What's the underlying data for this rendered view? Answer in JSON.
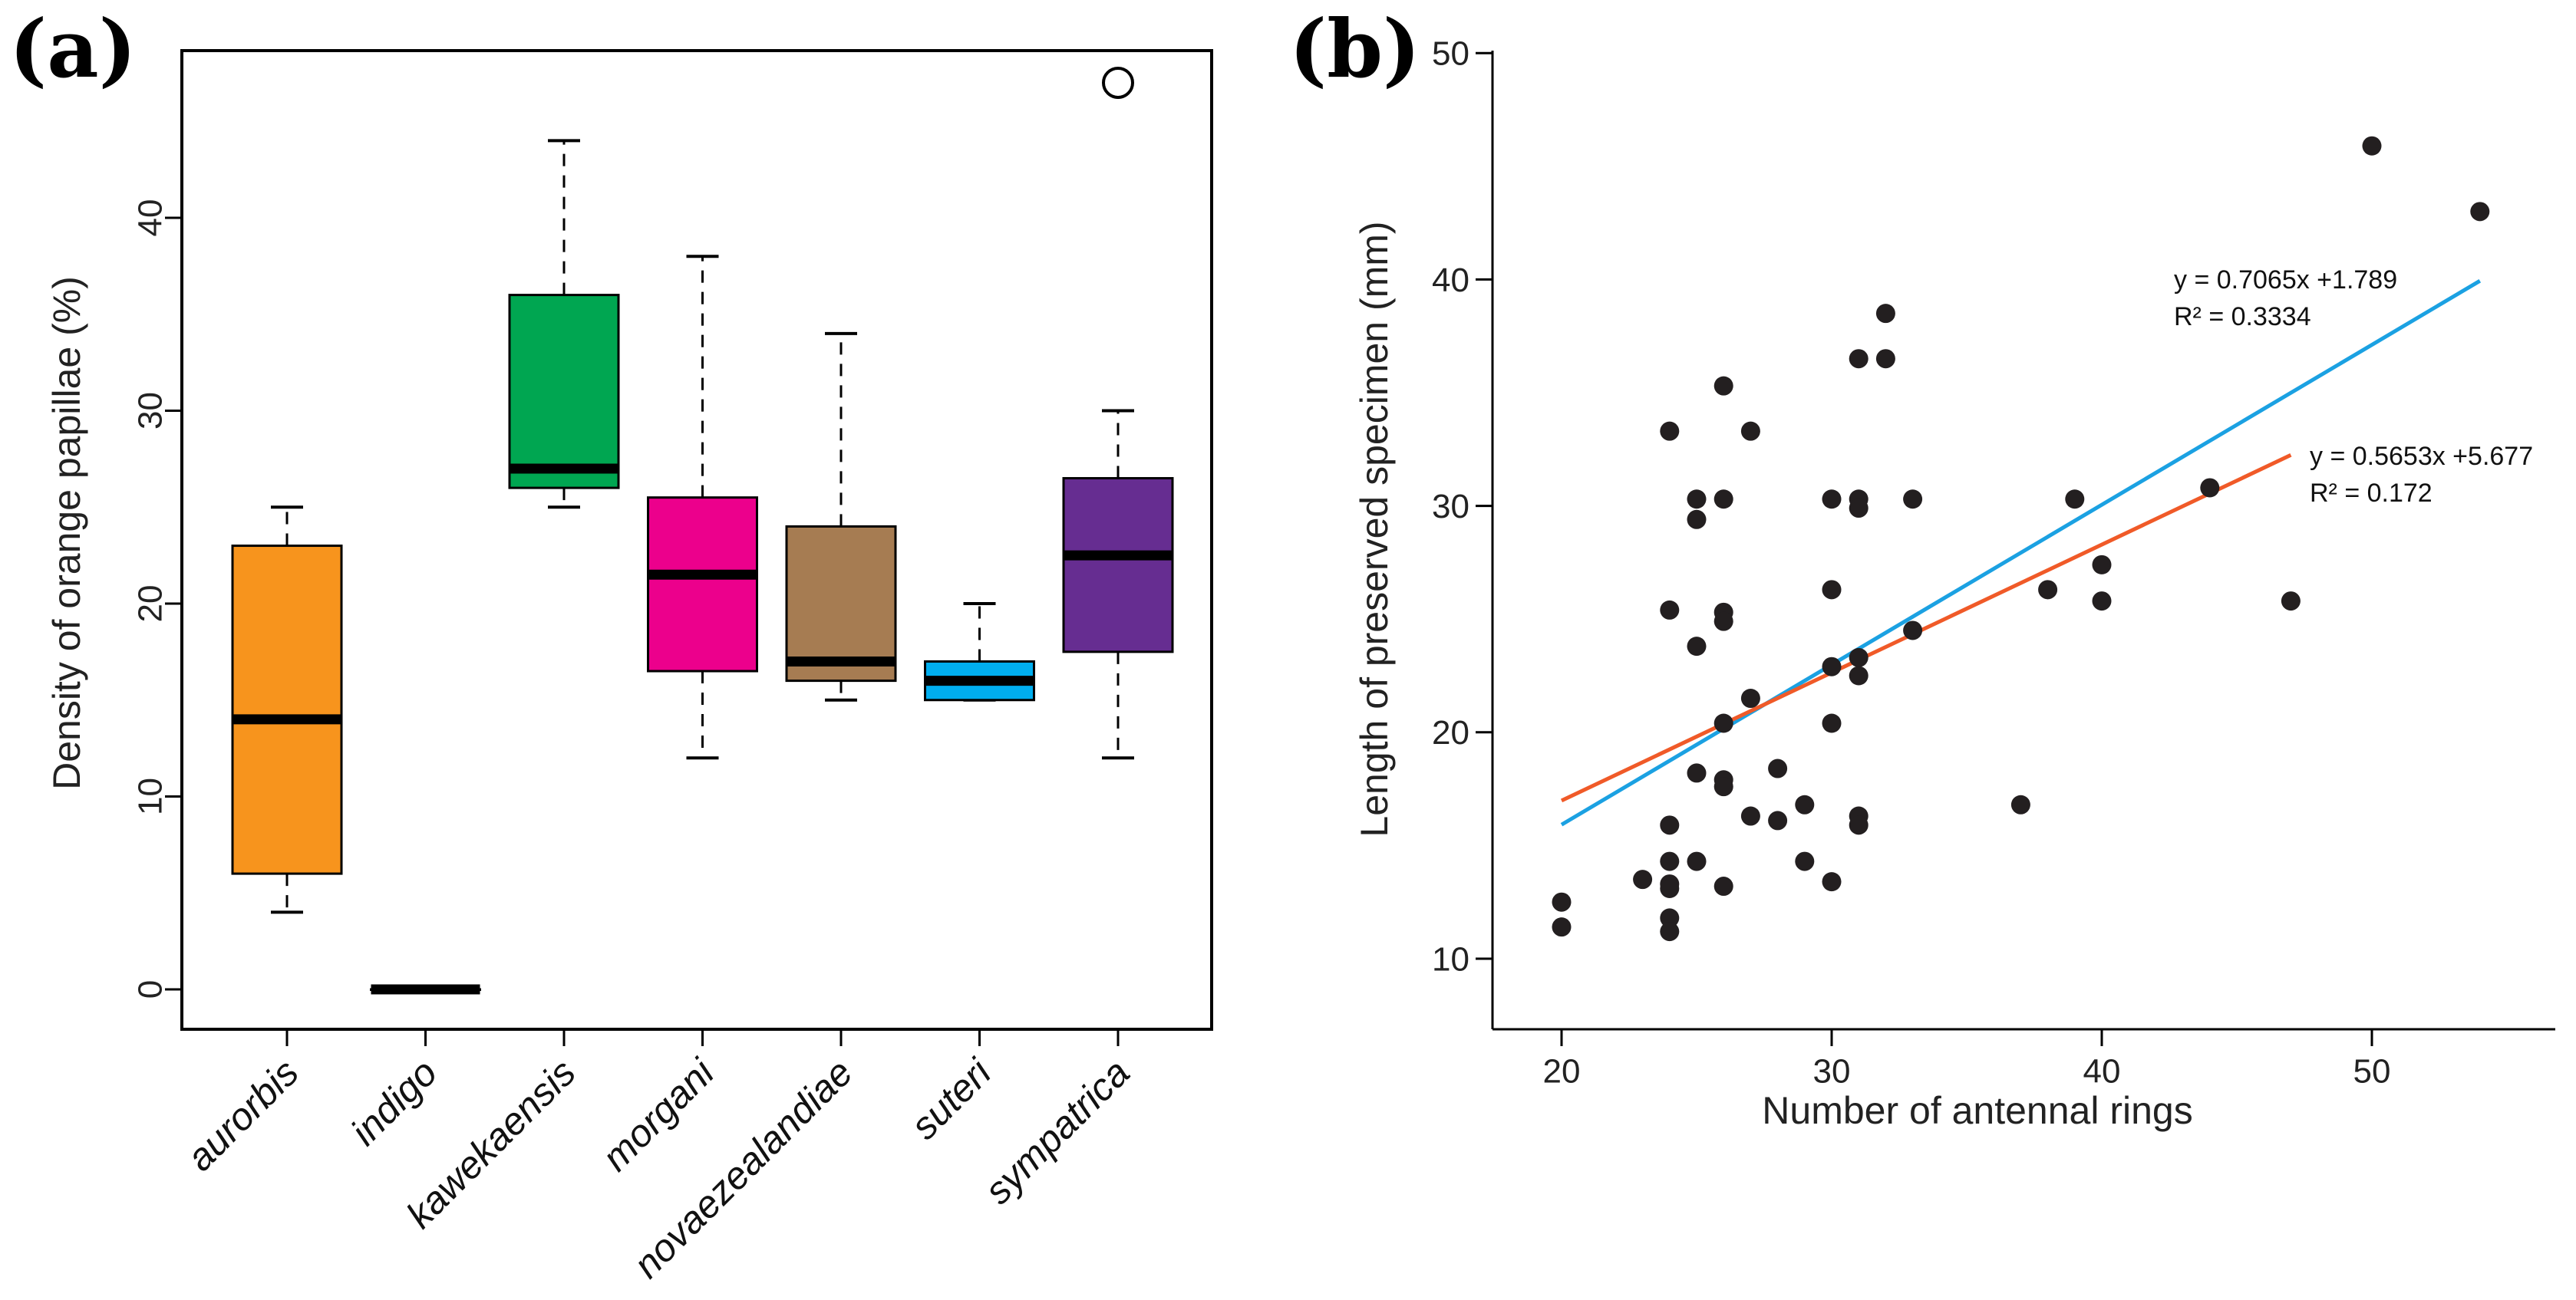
{
  "chart_data": [
    {
      "panel": "(a)",
      "type": "box",
      "title": "",
      "xlabel": "",
      "ylabel": "Density of orange papillae (%)",
      "ylim": [
        -2,
        50
      ],
      "yticks": [
        0,
        10,
        20,
        30,
        40
      ],
      "categories": [
        "aurorbis",
        "indigo",
        "kawekaensis",
        "morgani",
        "novaezealandiae",
        "suteri",
        "sympatrica"
      ],
      "boxes": [
        {
          "name": "aurorbis",
          "color": "#F7941D",
          "min": 4,
          "q1": 6,
          "median": 14,
          "q3": 23,
          "max": 25,
          "outliers": []
        },
        {
          "name": "indigo",
          "color": "#000000",
          "min": 0,
          "q1": 0,
          "median": 0,
          "q3": 0,
          "max": 0,
          "outliers": []
        },
        {
          "name": "kawekaensis",
          "color": "#00A651",
          "min": 25,
          "q1": 26,
          "median": 27,
          "q3": 36,
          "max": 44,
          "outliers": []
        },
        {
          "name": "morgani",
          "color": "#EC008C",
          "min": 12,
          "q1": 16.5,
          "median": 21.5,
          "q3": 25.5,
          "max": 38,
          "outliers": []
        },
        {
          "name": "novaezealandiae",
          "color": "#A67C52",
          "min": 15,
          "q1": 16,
          "median": 17,
          "q3": 24,
          "max": 34,
          "outliers": []
        },
        {
          "name": "suteri",
          "color": "#00AEEF",
          "min": 15,
          "q1": 15,
          "median": 16,
          "q3": 17,
          "max": 20,
          "outliers": []
        },
        {
          "name": "sympatrica",
          "color": "#662D91",
          "min": 12,
          "q1": 17.5,
          "median": 22.5,
          "q3": 26.5,
          "max": 30,
          "outliers": [
            47
          ]
        }
      ]
    },
    {
      "panel": "(b)",
      "type": "scatter",
      "title": "",
      "xlabel": "Number of antennal rings",
      "ylabel": "Length of preserved specimen (mm)",
      "xlim": [
        18,
        55
      ],
      "ylim": [
        7,
        50
      ],
      "xticks": [
        20,
        30,
        40,
        50
      ],
      "yticks": [
        10,
        20,
        30,
        40,
        50
      ],
      "points": [
        [
          20,
          12.5
        ],
        [
          20,
          11.4
        ],
        [
          23,
          13.5
        ],
        [
          24,
          33.3
        ],
        [
          24,
          25.4
        ],
        [
          24,
          15.9
        ],
        [
          24,
          14.3
        ],
        [
          24,
          13.3
        ],
        [
          24,
          13.1
        ],
        [
          24,
          11.8
        ],
        [
          24,
          11.2
        ],
        [
          25,
          30.3
        ],
        [
          25,
          29.4
        ],
        [
          25,
          23.8
        ],
        [
          25,
          18.2
        ],
        [
          25,
          14.3
        ],
        [
          26,
          35.3
        ],
        [
          26,
          30.3
        ],
        [
          26,
          25.3
        ],
        [
          26,
          24.9
        ],
        [
          26,
          20.4
        ],
        [
          26,
          17.9
        ],
        [
          26,
          17.6
        ],
        [
          26,
          13.2
        ],
        [
          27,
          33.3
        ],
        [
          27,
          21.5
        ],
        [
          27,
          16.3
        ],
        [
          28,
          18.4
        ],
        [
          28,
          16.1
        ],
        [
          29,
          16.8
        ],
        [
          29,
          14.3
        ],
        [
          30,
          30.3
        ],
        [
          30,
          26.3
        ],
        [
          30,
          22.9
        ],
        [
          30,
          20.4
        ],
        [
          30,
          13.4
        ],
        [
          31,
          36.5
        ],
        [
          31,
          30.3
        ],
        [
          31,
          29.9
        ],
        [
          31,
          23.3
        ],
        [
          31,
          22.5
        ],
        [
          31,
          16.3
        ],
        [
          31,
          15.9
        ],
        [
          32,
          38.5
        ],
        [
          32,
          36.5
        ],
        [
          33,
          30.3
        ],
        [
          33,
          24.5
        ],
        [
          37,
          16.8
        ],
        [
          38,
          26.3
        ],
        [
          39,
          30.3
        ],
        [
          40,
          27.4
        ],
        [
          40,
          25.8
        ],
        [
          44,
          30.8
        ],
        [
          47,
          25.8
        ],
        [
          50,
          45.9
        ],
        [
          54,
          43
        ]
      ],
      "series": [
        {
          "name": "blue fit",
          "color": "#1BA1E2",
          "slope": 0.7065,
          "intercept": 1.789,
          "x_range": [
            20,
            54
          ],
          "equation": "y = 0.7065x +1.789",
          "r2_label": "R² = 0.3334"
        },
        {
          "name": "orange fit",
          "color": "#F05A28",
          "slope": 0.5653,
          "intercept": 5.677,
          "x_range": [
            20,
            47
          ],
          "equation": "y = 0.5653x +5.677",
          "r2_label": "R² = 0.172"
        }
      ]
    }
  ]
}
